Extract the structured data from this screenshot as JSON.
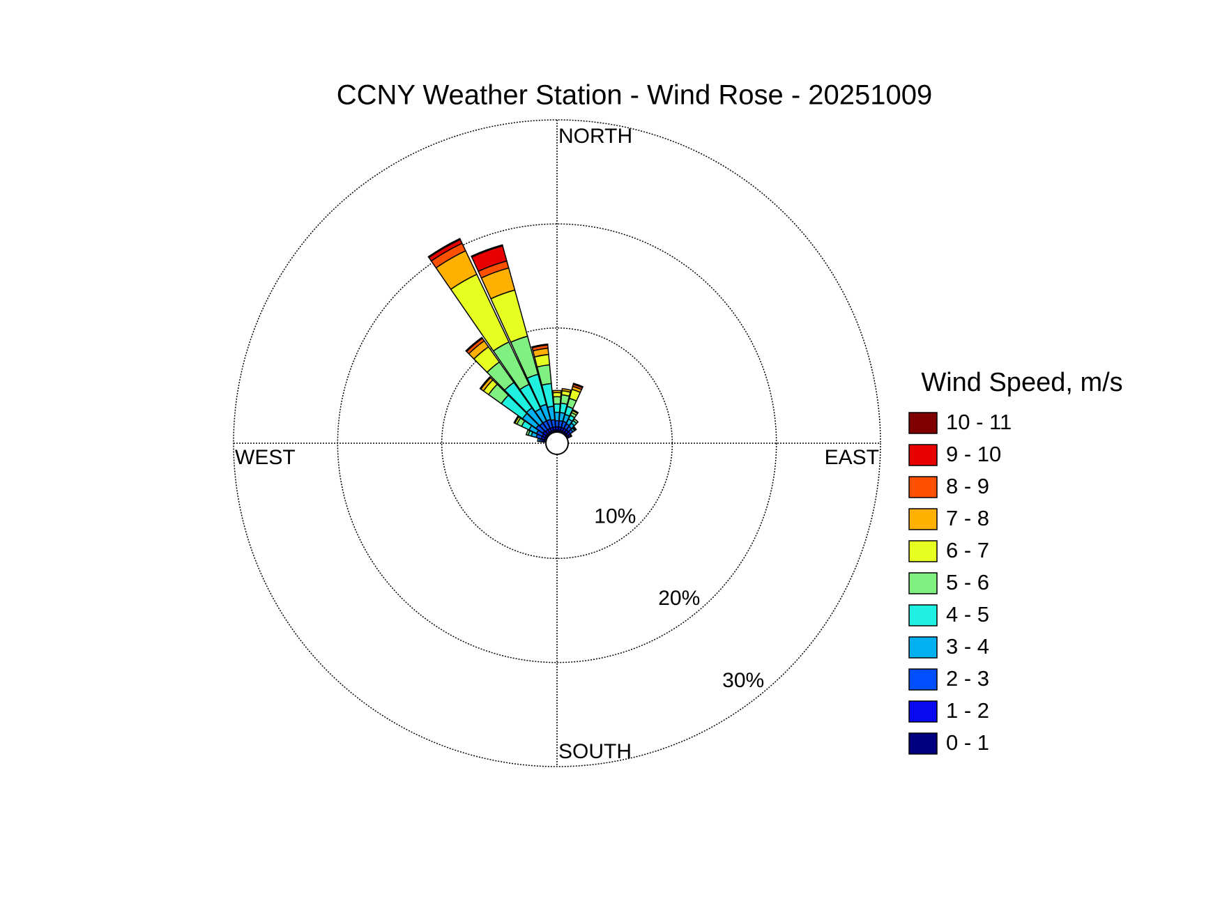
{
  "chart_data": {
    "type": "windrose",
    "title": "CCNY Weather Station - Wind Rose - 20251009",
    "compass": {
      "north": "NORTH",
      "east": "EAST",
      "south": "SOUTH",
      "west": "WEST"
    },
    "legend_title": "Wind Speed, m/s",
    "x": [
      280,
      290,
      300,
      310,
      320,
      330,
      340,
      350,
      0,
      10,
      20,
      30,
      40,
      50,
      60
    ],
    "rlim": [
      0,
      30
    ],
    "rticks": [
      {
        "value": 10,
        "label": "10%"
      },
      {
        "value": 20,
        "label": "20%"
      },
      {
        "value": 30,
        "label": "30%"
      }
    ],
    "series": [
      {
        "name": "0 - 1",
        "color": "#000080",
        "values": [
          0.2,
          0.2,
          0.2,
          0.2,
          0.2,
          0.2,
          0.2,
          0.2,
          0.2,
          0.2,
          0.2,
          0.2,
          0.2,
          0.2,
          0.2
        ]
      },
      {
        "name": "1 - 2",
        "color": "#0a0af0",
        "values": [
          0.2,
          0.3,
          0.3,
          0.4,
          0.3,
          0.3,
          0.3,
          0.3,
          0.3,
          0.3,
          0.3,
          0.3,
          0.3,
          0.3,
          0.2
        ]
      },
      {
        "name": "2 - 3",
        "color": "#0050ff",
        "values": [
          0.2,
          0.5,
          0.6,
          0.8,
          0.8,
          0.8,
          0.8,
          0.7,
          0.6,
          0.6,
          0.6,
          0.5,
          0.4,
          0.3,
          0.1
        ]
      },
      {
        "name": "3 - 4",
        "color": "#00b0f0",
        "values": [
          0.2,
          0.5,
          0.8,
          1.6,
          1.8,
          1.3,
          1.5,
          1.3,
          0.8,
          0.8,
          0.7,
          0.5,
          0.4,
          0.2,
          0
        ]
      },
      {
        "name": "4 - 5",
        "color": "#20f0e0",
        "values": [
          0,
          0.3,
          0.8,
          2.5,
          3.0,
          2.6,
          3.0,
          2.2,
          0.8,
          0.9,
          0.8,
          0.4,
          0.3,
          0.1,
          0
        ]
      },
      {
        "name": "5 - 6",
        "color": "#80f080",
        "values": [
          0,
          0.2,
          0.5,
          1.5,
          2.4,
          4.5,
          3.8,
          1.8,
          0.7,
          0.8,
          0.8,
          0.3,
          0.2,
          0.1,
          0
        ]
      },
      {
        "name": "6 - 7",
        "color": "#e6ff20",
        "values": [
          0,
          0,
          0.2,
          0.6,
          1.8,
          7.2,
          4.6,
          1.0,
          0.4,
          0.4,
          0.9,
          0.2,
          0,
          0,
          0
        ]
      },
      {
        "name": "7 - 8",
        "color": "#ffb000",
        "values": [
          0,
          0,
          0.1,
          0.3,
          0.7,
          2.5,
          2.2,
          0.6,
          0.2,
          0.2,
          0.3,
          0.1,
          0,
          0,
          0
        ]
      },
      {
        "name": "8 - 9",
        "color": "#ff5000",
        "values": [
          0,
          0,
          0,
          0.1,
          0.3,
          0.8,
          0.7,
          0.3,
          0,
          0,
          0.2,
          0,
          0,
          0,
          0
        ]
      },
      {
        "name": "9 - 10",
        "color": "#e80000",
        "values": [
          0,
          0,
          0,
          0,
          0,
          0.4,
          1.5,
          0.1,
          0,
          0,
          0.1,
          0,
          0,
          0,
          0
        ]
      },
      {
        "name": "10 - 11",
        "color": "#800000",
        "values": [
          0,
          0,
          0,
          0,
          0.1,
          0.1,
          0.1,
          0,
          0,
          0,
          0,
          0,
          0,
          0,
          0
        ]
      }
    ]
  }
}
